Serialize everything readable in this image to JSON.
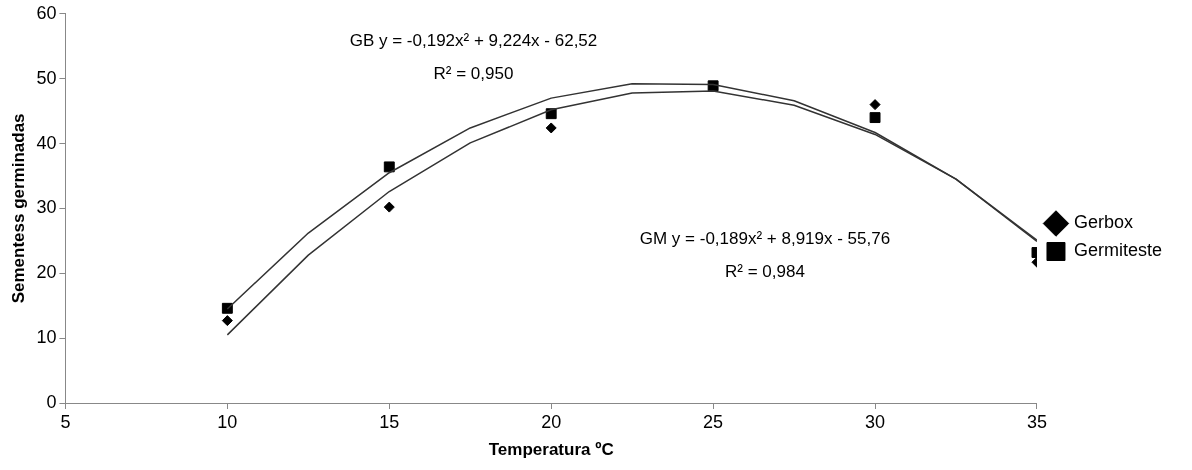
{
  "chart_data": {
    "type": "scatter",
    "xlabel": "Temperatura ºC",
    "ylabel": "Sementess germinadas",
    "xlim": [
      5,
      35
    ],
    "xticks": [
      5,
      10,
      15,
      20,
      25,
      30,
      35
    ],
    "ylim": [
      0,
      60
    ],
    "yticks": [
      0,
      10,
      20,
      30,
      40,
      50,
      60
    ],
    "grid": false,
    "legend": "right",
    "series": [
      {
        "name": "Gerbox",
        "color": "#000000",
        "marker": "diamond",
        "x": [
          10,
          15,
          20,
          25,
          30,
          35
        ],
        "values": [
          12.7,
          30.2,
          42.4,
          null,
          46,
          21.7
        ]
      },
      {
        "name": "Germiteste",
        "color": "#000000",
        "marker": "square",
        "x": [
          10,
          15,
          20,
          25,
          30,
          35
        ],
        "values": [
          14.6,
          36.4,
          44.6,
          48.9,
          44,
          23.2
        ]
      },
      {
        "type": "line",
        "color": "#333333",
        "marker": "none",
        "x": [
          10,
          12.5,
          15,
          17.5,
          20,
          22.5,
          25,
          27.5,
          30,
          32.5,
          35
        ],
        "values": [
          10.5,
          22.8,
          32.6,
          40.1,
          45.2,
          47.8,
          48.1,
          45.9,
          41.4,
          34.5,
          25.1
        ]
      },
      {
        "type": "line",
        "color": "#333333",
        "marker": "none",
        "x": [
          10,
          12.5,
          15,
          17.5,
          20,
          22.5,
          25,
          27.5,
          30,
          32.5,
          35
        ],
        "values": [
          14.5,
          26.2,
          35.5,
          42.4,
          47,
          49.2,
          49.1,
          46.6,
          41.7,
          34.5,
          24.9
        ]
      }
    ],
    "annotations": [
      "GB y = -0,192x² + 9,224x - 62,52",
      "R² = 0,950",
      "GM y = -0,189x² + 8,919x - 55,76",
      "R² = 0,984"
    ]
  }
}
